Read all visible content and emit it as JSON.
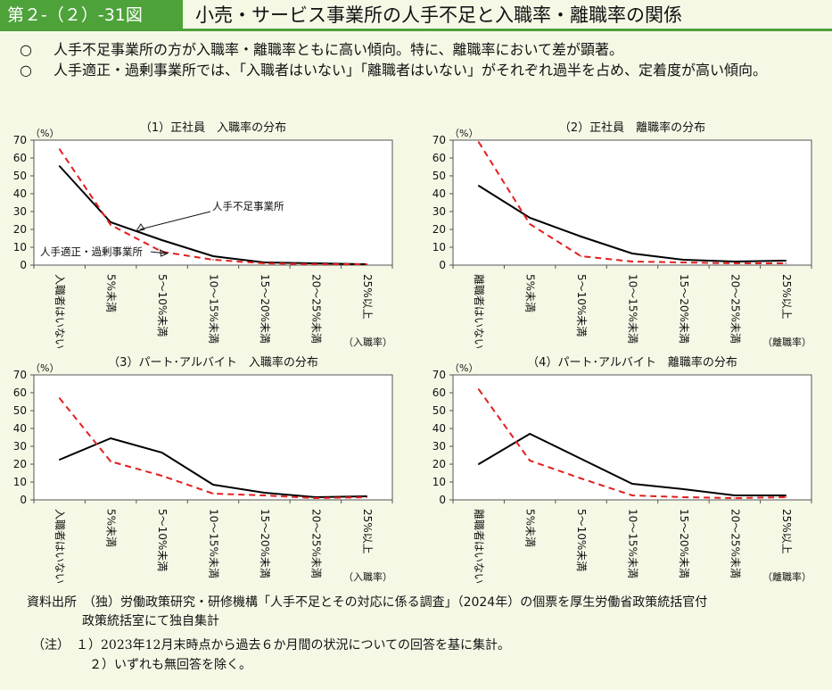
{
  "header": {
    "figure_number": "第２-（２）-31図",
    "title": "小売・サービス事業所の人手不足と入職率・離職率の関係"
  },
  "points": [
    {
      "bullet": "○",
      "text": "人手不足事業所の方が入職率・離職率ともに高い傾向。特に、離職率において差が顕著。"
    },
    {
      "bullet": "○",
      "text": "人手適正・過剰事業所では、「入職者はいない」「離職者はいない」がそれぞれ過半を占め、定着度が高い傾向。"
    }
  ],
  "colors": {
    "shortage": "#000000",
    "adequate": "#e0201e",
    "header_green": "#4da23a"
  },
  "chart_data": [
    {
      "type": "line",
      "title": "（1）正社員　入職率の分布",
      "ylabel": "（%）",
      "xlabel": "（入職率）",
      "ylim": [
        0,
        70
      ],
      "yticks": [
        "0",
        "10",
        "20",
        "30",
        "40",
        "50",
        "60",
        "70"
      ],
      "categories": [
        "入職者はいない",
        "5%未満",
        "5～10%未満",
        "10～15%未満",
        "15～20%未満",
        "20～25%未満",
        "25%以上"
      ],
      "series": [
        {
          "name": "人手不足事業所",
          "style": "solid",
          "values": [
            55.5,
            24,
            14,
            5,
            1.5,
            1,
            0.5
          ]
        },
        {
          "name": "人手適正・過剰事業所",
          "style": "dashed",
          "values": [
            65,
            22.5,
            7.5,
            3,
            1,
            0.5,
            0.5
          ]
        }
      ],
      "annotations": [
        {
          "text": "人手不足事業所",
          "series": 0
        },
        {
          "text": "人手適正・過剰事業所",
          "series": 1
        }
      ]
    },
    {
      "type": "line",
      "title": "（2）正社員　離職率の分布",
      "ylabel": "（%）",
      "xlabel": "（離職率）",
      "ylim": [
        0,
        70
      ],
      "yticks": [
        "0",
        "10",
        "20",
        "30",
        "40",
        "50",
        "60",
        "70"
      ],
      "categories": [
        "離職者はいない",
        "5%未満",
        "5～10%未満",
        "10～15%未満",
        "15～20%未満",
        "20～25%未満",
        "25%以上"
      ],
      "series": [
        {
          "name": "人手不足事業所",
          "style": "solid",
          "values": [
            44.5,
            26.5,
            16,
            6.5,
            3,
            2,
            2.5
          ]
        },
        {
          "name": "人手適正・過剰事業所",
          "style": "dashed",
          "values": [
            69,
            23,
            5,
            2,
            1.5,
            1,
            1
          ]
        }
      ]
    },
    {
      "type": "line",
      "title": "（3）パート･アルバイト　入職率の分布",
      "ylabel": "（%）",
      "xlabel": "（入職率）",
      "ylim": [
        0,
        70
      ],
      "yticks": [
        "0",
        "10",
        "20",
        "30",
        "40",
        "50",
        "60",
        "70"
      ],
      "categories": [
        "入職者はいない",
        "5%未満",
        "5～10%未満",
        "10～15%未満",
        "15～20%未満",
        "20～25%未満",
        "25%以上"
      ],
      "series": [
        {
          "name": "人手不足事業所",
          "style": "solid",
          "values": [
            22.5,
            34.5,
            26.5,
            8.5,
            4,
            1.5,
            2
          ]
        },
        {
          "name": "人手適正・過剰事業所",
          "style": "dashed",
          "values": [
            57,
            21.5,
            13.5,
            3.5,
            2.5,
            1,
            1.5
          ]
        }
      ]
    },
    {
      "type": "line",
      "title": "（4）パート･アルバイト　離職率の分布",
      "ylabel": "（%）",
      "xlabel": "（離職率）",
      "ylim": [
        0,
        70
      ],
      "yticks": [
        "0",
        "10",
        "20",
        "30",
        "40",
        "50",
        "60",
        "70"
      ],
      "categories": [
        "離職者はいない",
        "5%未満",
        "5～10%未満",
        "10～15%未満",
        "15～20%未満",
        "20～25%未満",
        "25%以上"
      ],
      "series": [
        {
          "name": "人手不足事業所",
          "style": "solid",
          "values": [
            20,
            37,
            23,
            9,
            6,
            2.5,
            2.5
          ]
        },
        {
          "name": "人手適正・過剰事業所",
          "style": "dashed",
          "values": [
            62,
            22,
            12,
            2.5,
            1.5,
            1,
            1.5
          ]
        }
      ]
    }
  ],
  "source": {
    "label": "資料出所",
    "line1": "（独）労働政策研究・研修機構「人手不足とその対応に係る調査」（2024年）の個票を厚生労働省政策統括官付",
    "line2": "政策統括室にて独自集計"
  },
  "notes": {
    "label": "（注）",
    "items": [
      "１）2023年12月末時点から過去６か月間の状況についての回答を基に集計。",
      "２）いずれも無回答を除く。"
    ]
  }
}
